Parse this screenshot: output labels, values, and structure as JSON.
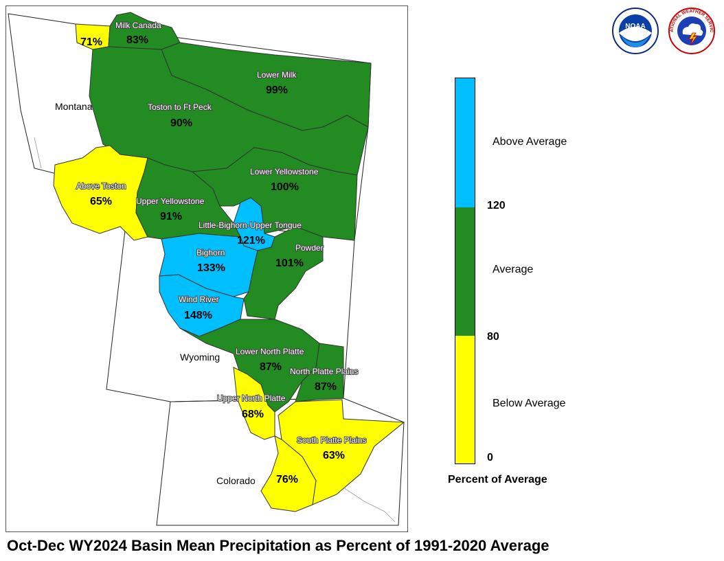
{
  "title": "Oct-Dec WY2024 Basin Mean Precipitation as Percent of 1991-2020 Average",
  "colors": {
    "below": "#ffff00",
    "average": "#228b22",
    "above": "#00bfff",
    "outline": "#333333"
  },
  "states": [
    {
      "id": "montana",
      "label": "Montana"
    },
    {
      "id": "wyoming",
      "label": "Wyoming"
    },
    {
      "id": "colorado",
      "label": "Colorado"
    }
  ],
  "basins": [
    {
      "id": "milk-canada-west",
      "name": "",
      "value": "71%",
      "category": "below"
    },
    {
      "id": "milk-canada",
      "name": "Milk Canada",
      "value": "83%",
      "category": "average"
    },
    {
      "id": "lower-milk",
      "name": "Lower Milk",
      "value": "99%",
      "category": "average"
    },
    {
      "id": "toston-ft-peck",
      "name": "Toston to Ft Peck",
      "value": "90%",
      "category": "average"
    },
    {
      "id": "above-toston",
      "name": "Above Toston",
      "value": "65%",
      "category": "below"
    },
    {
      "id": "lower-yellowstone",
      "name": "Lower Yellowstone",
      "value": "100%",
      "category": "average"
    },
    {
      "id": "upper-yellowstone",
      "name": "Upper Yellowstone",
      "value": "91%",
      "category": "average"
    },
    {
      "id": "little-bighorn",
      "name": "Little-Bighorn-Upper Tongue",
      "value": "121%",
      "category": "above"
    },
    {
      "id": "bighorn",
      "name": "Bighorn",
      "value": "133%",
      "category": "above"
    },
    {
      "id": "powder",
      "name": "Powder",
      "value": "101%",
      "category": "average"
    },
    {
      "id": "wind-river",
      "name": "Wind River",
      "value": "148%",
      "category": "above"
    },
    {
      "id": "lower-north-platte",
      "name": "Lower North Platte",
      "value": "87%",
      "category": "average"
    },
    {
      "id": "north-platte-plains",
      "name": "North Platte Plains",
      "value": "87%",
      "category": "average"
    },
    {
      "id": "upper-north-platte",
      "name": "Upper North Platte",
      "value": "68%",
      "category": "below"
    },
    {
      "id": "south-platte-plains",
      "name": "South Platte Plains",
      "value": "63%",
      "category": "below"
    },
    {
      "id": "south-platte-mtn",
      "name": "",
      "value": "76%",
      "category": "below"
    }
  ],
  "legend": {
    "title": "Percent of Average",
    "categories": {
      "above": "Above Average",
      "average": "Average",
      "below": "Below Average"
    },
    "ticks": {
      "t120": "120",
      "t80": "80",
      "t0": "0"
    }
  },
  "logos": {
    "noaa": {
      "text": "NOAA",
      "icon": "noaa-logo-icon"
    },
    "nws": {
      "text": "NATIONAL WEATHER SERVICE",
      "icon": "nws-logo-icon"
    }
  }
}
